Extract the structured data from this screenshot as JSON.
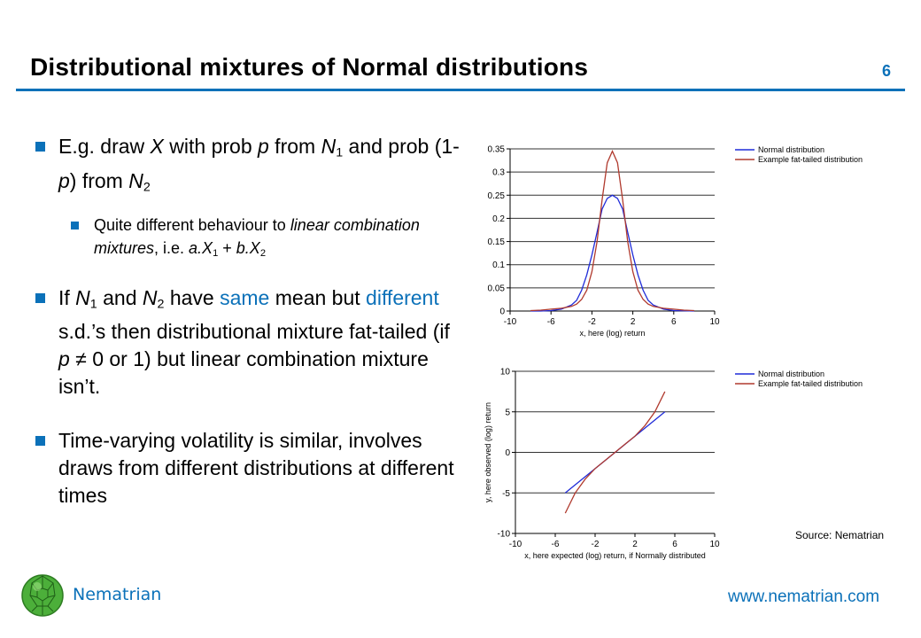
{
  "slide": {
    "title": "Distributional mixtures of Normal distributions",
    "page_number": "6",
    "source": "Source: Nematrian",
    "brand": "Nematrian",
    "url": "www.nematrian.com",
    "accent_color": "#0b71b9"
  },
  "bullets": {
    "b1": {
      "t1": "E.g. draw ",
      "x": "X",
      "t2": " with prob ",
      "p": "p",
      "t3": " from ",
      "n1": "N",
      "s1": "1",
      "t4": " and prob (1-",
      "p2": "p",
      "t5": ") from ",
      "n2": "N",
      "s2": "2"
    },
    "b1_sub": {
      "t1": "Quite different behaviour to ",
      "lin": "linear combination mixtures",
      "t2": ", i.e. ",
      "ax": "a.X",
      "s1": "1",
      "plus": " + ",
      "bx": "b.X",
      "s2": "2"
    },
    "b2": {
      "t1": "If ",
      "n1": "N",
      "s1": "1",
      "t2": " and ",
      "n2": "N",
      "s2": "2",
      "t3": " have ",
      "same": "same",
      "t4": " mean but ",
      "different": "different",
      "t5": " s.d.’s then distributional mixture fat-tailed (if ",
      "p": "p",
      "t6": " ≠ 0 or 1) but linear combination mixture isn’t."
    },
    "b3": {
      "text": "Time-varying volatility is similar, involves draws from different distributions at different times"
    }
  },
  "chart_data": [
    {
      "type": "line",
      "xlabel": "x, here (log) return",
      "ylabel": "",
      "xlim": [
        -10,
        10
      ],
      "ylim": [
        0,
        0.35
      ],
      "xticks": [
        "-10",
        "-6",
        "-2",
        "2",
        "6",
        "10"
      ],
      "yticks": [
        "0",
        "0.05",
        "0.1",
        "0.15",
        "0.2",
        "0.25",
        "0.3",
        "0.35"
      ],
      "grid": "horizontal",
      "legend": "top-right",
      "series": [
        {
          "name": "Normal distribution",
          "color": "#1f2bd8",
          "x": [
            -8,
            -7,
            -6,
            -5,
            -4,
            -3.5,
            -3,
            -2.5,
            -2,
            -1.5,
            -1,
            -0.5,
            0,
            0.5,
            1,
            1.5,
            2,
            2.5,
            3,
            3.5,
            4,
            5,
            6,
            8
          ],
          "y": [
            0,
            0,
            0.001,
            0.004,
            0.013,
            0.023,
            0.045,
            0.078,
            0.121,
            0.17,
            0.22,
            0.243,
            0.25,
            0.243,
            0.22,
            0.17,
            0.121,
            0.078,
            0.045,
            0.023,
            0.013,
            0.004,
            0.001,
            0
          ]
        },
        {
          "name": "Example fat-tailed distribution",
          "color": "#b03a2e",
          "x": [
            -8,
            -7,
            -6,
            -5,
            -4,
            -3.5,
            -3,
            -2.5,
            -2,
            -1.5,
            -1,
            -0.5,
            0,
            0.5,
            1,
            1.5,
            2,
            2.5,
            3,
            3.5,
            4,
            5,
            6,
            7,
            8
          ],
          "y": [
            0.001,
            0.002,
            0.004,
            0.006,
            0.01,
            0.015,
            0.025,
            0.045,
            0.085,
            0.15,
            0.24,
            0.32,
            0.345,
            0.32,
            0.24,
            0.15,
            0.085,
            0.045,
            0.025,
            0.015,
            0.01,
            0.006,
            0.004,
            0.002,
            0.001
          ]
        }
      ]
    },
    {
      "type": "line",
      "xlabel": "x, here expected (log) return, if Normally distributed",
      "ylabel": "y, here observed (log) return",
      "xlim": [
        -10,
        10
      ],
      "ylim": [
        -10,
        10
      ],
      "xticks": [
        "-10",
        "-6",
        "-2",
        "2",
        "6",
        "10"
      ],
      "yticks": [
        "-10",
        "-5",
        "0",
        "5",
        "10"
      ],
      "grid": "horizontal",
      "legend": "top-right",
      "series": [
        {
          "name": "Normal distribution",
          "color": "#1f2bd8",
          "x": [
            -5,
            5
          ],
          "y": [
            -5,
            5
          ]
        },
        {
          "name": "Example fat-tailed distribution",
          "color": "#b03a2e",
          "x": [
            -5,
            -4,
            -3,
            -2,
            -1,
            0,
            1,
            2,
            3,
            4,
            5
          ],
          "y": [
            -7.5,
            -5,
            -3.3,
            -2,
            -1,
            0,
            1,
            2,
            3.3,
            5,
            7.5
          ]
        }
      ]
    }
  ]
}
